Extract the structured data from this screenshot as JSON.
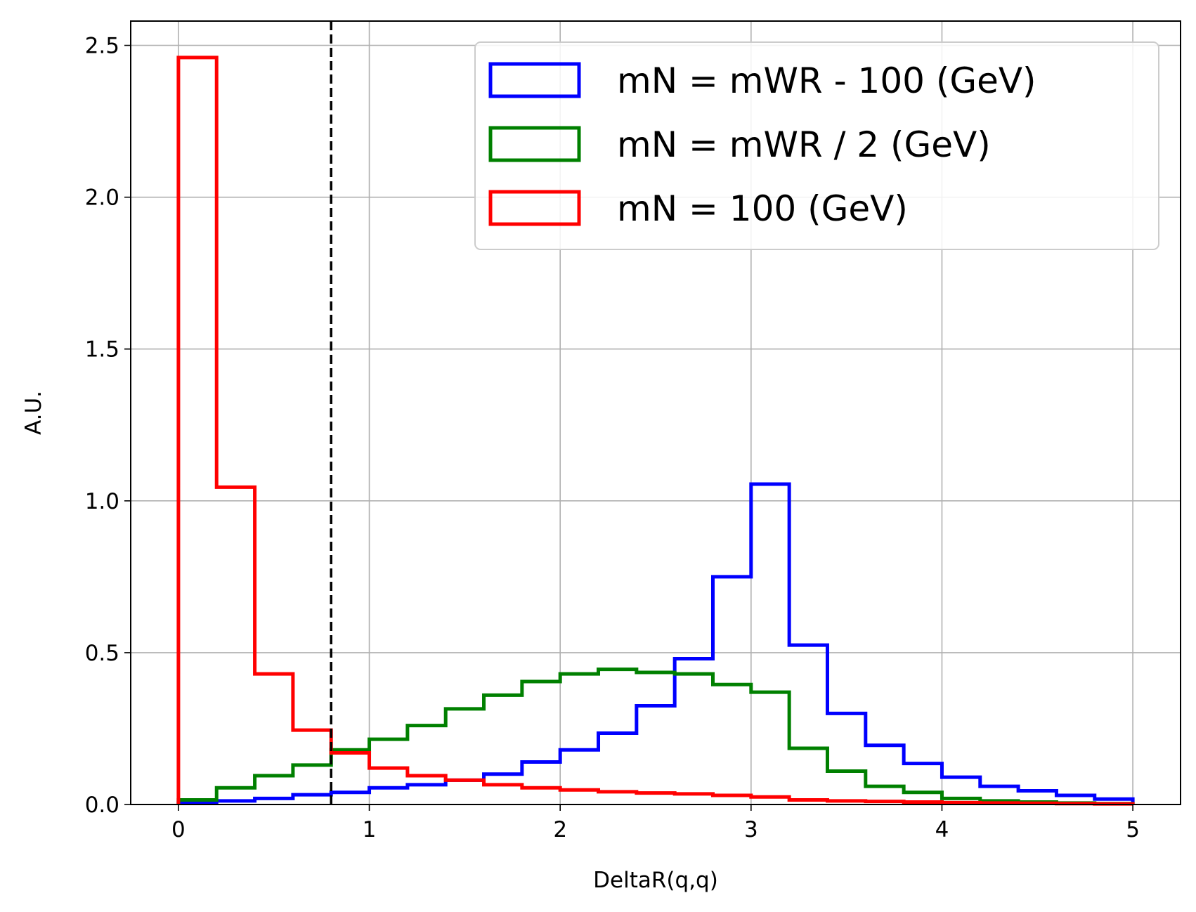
{
  "chart_data": {
    "type": "histogram",
    "xlabel": "DeltaR(q,q)",
    "ylabel": "A.U.",
    "xlim": [
      -0.25,
      5.25
    ],
    "ylim": [
      0,
      2.58
    ],
    "x_ticks": [
      "0",
      "1",
      "2",
      "3",
      "4",
      "5"
    ],
    "y_ticks": [
      "0.0",
      "0.5",
      "1.0",
      "1.5",
      "2.0",
      "2.5"
    ],
    "grid": true,
    "legend_position": "top-right",
    "bin_edges": [
      0.0,
      0.2,
      0.4,
      0.6,
      0.8,
      1.0,
      1.2,
      1.4,
      1.6,
      1.8,
      2.0,
      2.2,
      2.4,
      2.6,
      2.8,
      3.0,
      3.2,
      3.4,
      3.6,
      3.8,
      4.0,
      4.2,
      4.4,
      4.6,
      4.8,
      5.0
    ],
    "series": [
      {
        "name": "mN = mWR - 100 (GeV)",
        "color": "#0000ff",
        "values": [
          0.005,
          0.012,
          0.02,
          0.032,
          0.04,
          0.055,
          0.065,
          0.08,
          0.1,
          0.14,
          0.18,
          0.235,
          0.325,
          0.48,
          0.75,
          1.055,
          0.525,
          0.3,
          0.195,
          0.135,
          0.09,
          0.06,
          0.045,
          0.03,
          0.018
        ]
      },
      {
        "name": "mN = mWR / 2 (GeV)",
        "color": "#008000",
        "values": [
          0.015,
          0.055,
          0.095,
          0.13,
          0.18,
          0.215,
          0.26,
          0.315,
          0.36,
          0.405,
          0.43,
          0.445,
          0.435,
          0.43,
          0.395,
          0.37,
          0.185,
          0.11,
          0.06,
          0.04,
          0.02,
          0.012,
          0.008,
          0.005,
          0.003
        ]
      },
      {
        "name": "mN = 100 (GeV)",
        "color": "#ff0000",
        "values": [
          2.46,
          1.045,
          0.43,
          0.245,
          0.17,
          0.12,
          0.095,
          0.08,
          0.065,
          0.055,
          0.048,
          0.042,
          0.038,
          0.035,
          0.03,
          0.025,
          0.015,
          0.012,
          0.01,
          0.008,
          0.006,
          0.005,
          0.004,
          0.003,
          0.002
        ]
      }
    ],
    "vline": {
      "x": 0.8,
      "color": "#000000",
      "style": "dashed"
    }
  }
}
